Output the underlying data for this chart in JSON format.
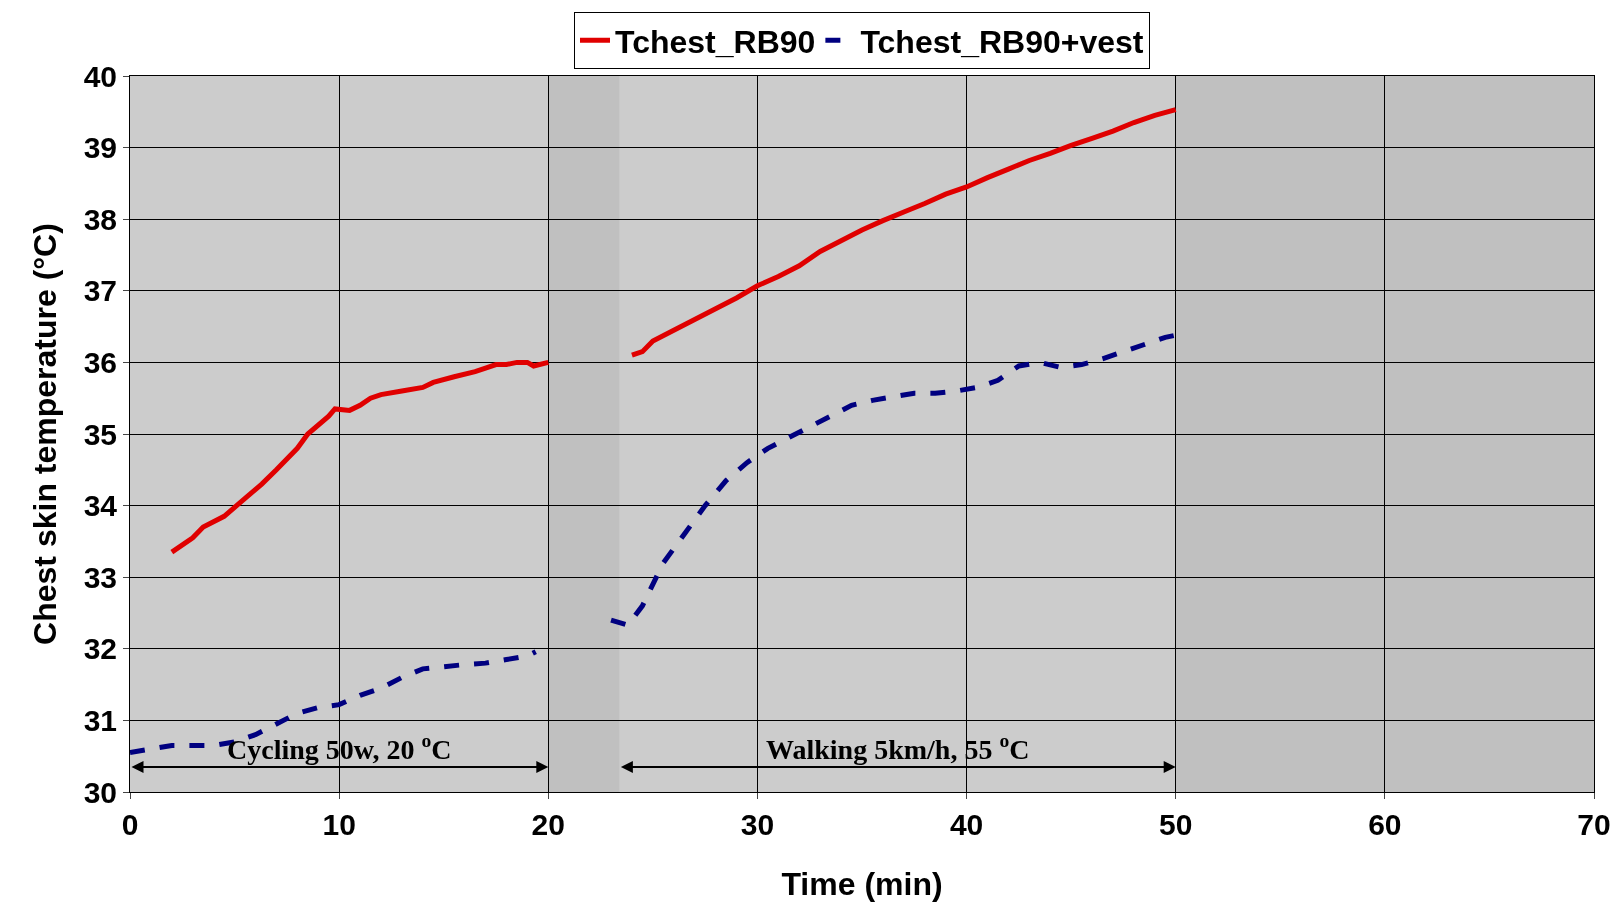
{
  "chart_data": {
    "type": "line",
    "xlabel": "Time (min)",
    "ylabel": "Chest skin temperature (°C)",
    "xlim": [
      0,
      70
    ],
    "xticks": [
      0,
      10,
      20,
      30,
      40,
      50,
      60,
      70
    ],
    "ylim": [
      30,
      40
    ],
    "yticks": [
      30,
      31,
      32,
      33,
      34,
      35,
      36,
      37,
      38,
      39,
      40
    ],
    "grid": true,
    "legend": "top",
    "marker": "none",
    "series": [
      {
        "name": "Tchest_RB90",
        "color": "#e00000",
        "line_style": "solid",
        "x": [
          2,
          3,
          3.5,
          4.5,
          5.5,
          6.3,
          7,
          8,
          8.5,
          9.5,
          9.8,
          10.5,
          11,
          11.5,
          12,
          13,
          14,
          14.5,
          15.5,
          16.5,
          17,
          17.5,
          18,
          18.5,
          19,
          19.3,
          20,
          22,
          24,
          24.5,
          25,
          26,
          27,
          28,
          29,
          30,
          31,
          32,
          33,
          34,
          35,
          36,
          37,
          38,
          39,
          40,
          41,
          42,
          43,
          44,
          45,
          46,
          47,
          48,
          49,
          50
        ],
        "values": [
          33.35,
          33.55,
          33.7,
          33.85,
          34.1,
          34.3,
          34.5,
          34.8,
          35.0,
          35.25,
          35.35,
          35.33,
          35.4,
          35.5,
          35.55,
          35.6,
          35.65,
          35.72,
          35.8,
          35.87,
          35.92,
          35.97,
          35.97,
          36.0,
          36.0,
          35.95,
          36.0,
          null,
          36.1,
          36.15,
          36.3,
          36.45,
          36.6,
          36.75,
          36.9,
          37.07,
          37.2,
          37.35,
          37.55,
          37.7,
          37.85,
          37.98,
          38.1,
          38.22,
          38.35,
          38.45,
          38.58,
          38.7,
          38.82,
          38.92,
          39.03,
          39.13,
          39.23,
          39.35,
          39.45,
          39.53
        ]
      },
      {
        "name": "Tchest_RB90+vest",
        "color": "#000080",
        "line_style": "dashed",
        "x": [
          0,
          1,
          2,
          3,
          4,
          5,
          6,
          7,
          8,
          9,
          10,
          11,
          12,
          13,
          14,
          15,
          16,
          17,
          18,
          19,
          19.4,
          21,
          23,
          23.8,
          24.5,
          25.5,
          26.5,
          27.5,
          28.5,
          29.5,
          30.5,
          31.5,
          32.5,
          33.5,
          34.5,
          35.5,
          36.5,
          37.5,
          38.5,
          39.5,
          40.5,
          41.5,
          42.5,
          43.5,
          44.5,
          45.5,
          46.5,
          47.5,
          48.5,
          49.5,
          50
        ],
        "values": [
          30.55,
          30.6,
          30.65,
          30.65,
          30.65,
          30.7,
          30.8,
          30.95,
          31.1,
          31.18,
          31.22,
          31.35,
          31.45,
          31.6,
          31.72,
          31.75,
          31.78,
          31.8,
          31.85,
          31.9,
          31.96,
          null,
          32.4,
          32.33,
          32.6,
          33.2,
          33.6,
          34.0,
          34.35,
          34.6,
          34.8,
          34.95,
          35.1,
          35.25,
          35.4,
          35.47,
          35.52,
          35.57,
          35.57,
          35.6,
          35.65,
          35.75,
          35.95,
          36.0,
          35.93,
          35.97,
          36.05,
          36.15,
          36.25,
          36.35,
          36.38
        ]
      }
    ],
    "bands": [
      {
        "axis": "x",
        "from": 0,
        "to": 20,
        "label": "Cycling 50w, 20 $^{o}$C"
      },
      {
        "axis": "x",
        "from": 23.4,
        "to": 50,
        "label": "Walking 5km/h, 55 $^{o}$C"
      }
    ]
  }
}
